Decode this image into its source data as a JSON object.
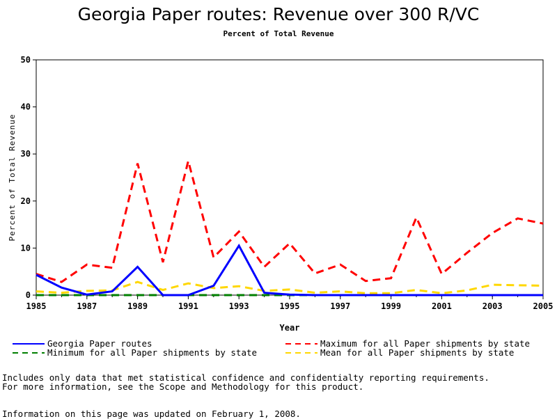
{
  "chart_data": {
    "type": "line",
    "title": "Georgia Paper routes: Revenue over 300 R/VC",
    "subtitle": "Percent of Total Revenue",
    "xlabel": "Year",
    "ylabel": "Percent of Total Revenue",
    "xlim": [
      1985,
      2005
    ],
    "ylim": [
      0,
      50
    ],
    "x_ticks": [
      "1985",
      "1987",
      "1989",
      "1991",
      "1993",
      "1995",
      "1997",
      "1999",
      "2001",
      "2003",
      "2005"
    ],
    "y_ticks": [
      "0",
      "10",
      "20",
      "30",
      "40",
      "50"
    ],
    "grid": false,
    "legend_position": "bottom",
    "x": [
      1985,
      1986,
      1987,
      1988,
      1989,
      1990,
      1991,
      1992,
      1993,
      1994,
      1995,
      1996,
      1997,
      1998,
      1999,
      2000,
      2001,
      2002,
      2003,
      2004,
      2005
    ],
    "series": [
      {
        "name": "Georgia Paper routes",
        "color": "#0000ff",
        "dash": "solid",
        "values": [
          4.3,
          1.6,
          0.1,
          0.8,
          6.0,
          0.0,
          0.0,
          2.0,
          10.5,
          0.5,
          0.1,
          0.0,
          0.0,
          0.0,
          0.0,
          0.0,
          0.0,
          0.0,
          0.0,
          0.0,
          0.0
        ]
      },
      {
        "name": "Maximum for all Paper shipments by state",
        "color": "#ff0000",
        "dash": "dashed",
        "values": [
          4.5,
          2.8,
          6.5,
          5.8,
          28.0,
          7.0,
          28.5,
          8.0,
          13.5,
          6.0,
          11.0,
          4.6,
          6.5,
          3.0,
          3.6,
          16.5,
          4.5,
          9.0,
          13.2,
          16.3,
          15.2
        ]
      },
      {
        "name": "Minimum for all Paper shipments by state",
        "color": "#007f00",
        "dash": "dashed",
        "values": [
          0,
          0,
          0,
          0,
          0,
          0,
          0,
          0,
          0,
          0,
          0,
          0,
          0,
          0,
          0,
          0,
          0,
          0,
          0,
          0,
          0
        ]
      },
      {
        "name": "Mean for all Paper shipments by state",
        "color": "#ffd700",
        "dash": "dashed",
        "values": [
          0.8,
          0.5,
          0.9,
          1.0,
          2.8,
          1.1,
          2.5,
          1.5,
          1.9,
          0.9,
          1.2,
          0.5,
          0.8,
          0.4,
          0.4,
          1.1,
          0.4,
          1.0,
          2.2,
          2.1,
          2.0
        ]
      }
    ]
  },
  "footer": {
    "note_line1": "Includes only data that met statistical confidence and confidentialty reporting requirements.",
    "note_line2": "For more information, see the Scope and Methodology for this product.",
    "updated": "Information on this page was updated on February 1, 2008."
  }
}
